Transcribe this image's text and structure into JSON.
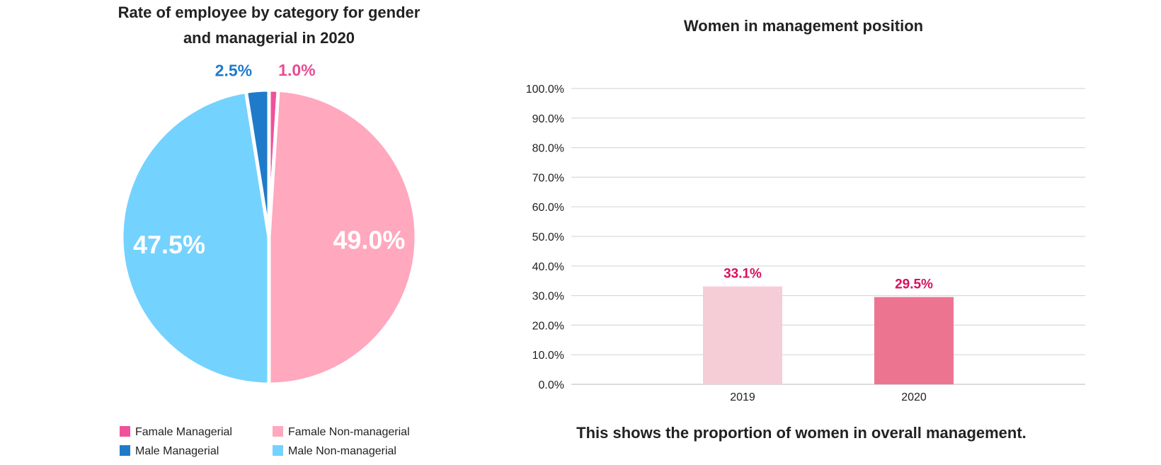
{
  "chart_data": [
    {
      "type": "pie",
      "title_lines": [
        "Rate of employee by category for gender",
        "and managerial in 2020"
      ],
      "slices": [
        {
          "name": "Famale Managerial",
          "value": 1.0,
          "label": "1.0%",
          "color": "#f0529a",
          "label_color": "#e94b93"
        },
        {
          "name": "Famale Non-managerial",
          "value": 49.0,
          "label": "49.0%",
          "color": "#ffa8be",
          "label_color": "#ffffff"
        },
        {
          "name": "Male Non-managerial",
          "value": 47.5,
          "label": "47.5%",
          "color": "#74d2fe",
          "label_color": "#ffffff"
        },
        {
          "name": "Male Managerial",
          "value": 2.5,
          "label": "2.5%",
          "color": "#1f7bca",
          "label_color": "#1f7bca"
        }
      ],
      "legend": [
        {
          "label": "Famale Managerial",
          "color": "#f0529a"
        },
        {
          "label": "Famale Non-managerial",
          "color": "#ffa8be"
        },
        {
          "label": "Male Managerial",
          "color": "#1f7bca"
        },
        {
          "label": "Male Non-managerial",
          "color": "#74d2fe"
        }
      ],
      "legend_placement": "bottom"
    },
    {
      "type": "bar",
      "title": "Women in management position",
      "categories": [
        "2019",
        "2020"
      ],
      "values": [
        33.1,
        29.5
      ],
      "data_labels": [
        "33.1%",
        "29.5%"
      ],
      "bar_colors": [
        "#f5cdd7",
        "#ed7491"
      ],
      "label_color": "#d6115f",
      "ylim": [
        0,
        100
      ],
      "yticks": [
        0,
        10,
        20,
        30,
        40,
        50,
        60,
        70,
        80,
        90,
        100
      ],
      "ytick_labels": [
        "0.0%",
        "10.0%",
        "20.0%",
        "30.0%",
        "40.0%",
        "50.0%",
        "60.0%",
        "70.0%",
        "80.0%",
        "90.0%",
        "100.0%"
      ],
      "grid": true,
      "caption": "This shows the proportion of women in overall management."
    }
  ]
}
